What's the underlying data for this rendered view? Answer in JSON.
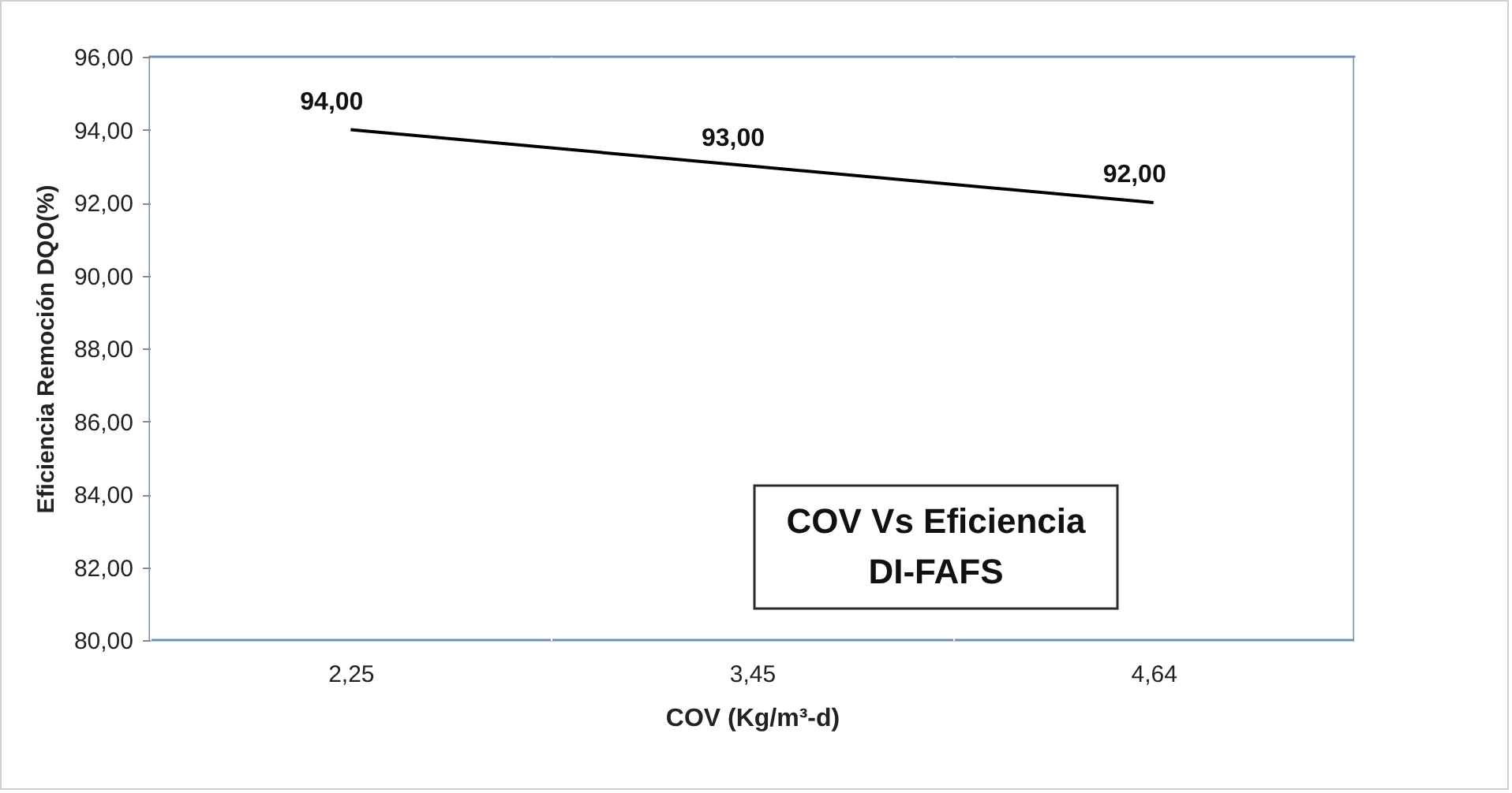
{
  "chart_data": {
    "type": "line",
    "title": "COV Vs Eficiencia\nDI-FAFS",
    "xlabel": "COV (Kg/m³-d)",
    "ylabel": "Eficiencia Remoción DQO(%)",
    "categories": [
      "2,25",
      "3,45",
      "4,64"
    ],
    "series": [
      {
        "color": "#000000",
        "values": [
          94,
          93,
          92
        ],
        "value_labels": [
          "94,00",
          "93,00",
          "92,00"
        ]
      }
    ],
    "ylim": [
      80,
      96
    ],
    "yticks": [
      {
        "value": 80,
        "label": "80,00"
      },
      {
        "value": 82,
        "label": "82,00"
      },
      {
        "value": 84,
        "label": "84,00"
      },
      {
        "value": 86,
        "label": "86,00"
      },
      {
        "value": 88,
        "label": "88,00"
      },
      {
        "value": 90,
        "label": "90,00"
      },
      {
        "value": 92,
        "label": "92,00"
      },
      {
        "value": 94,
        "label": "94,00"
      },
      {
        "value": 96,
        "label": "96,00"
      }
    ],
    "grid": "x",
    "marker": "none",
    "line_style": "solid"
  }
}
